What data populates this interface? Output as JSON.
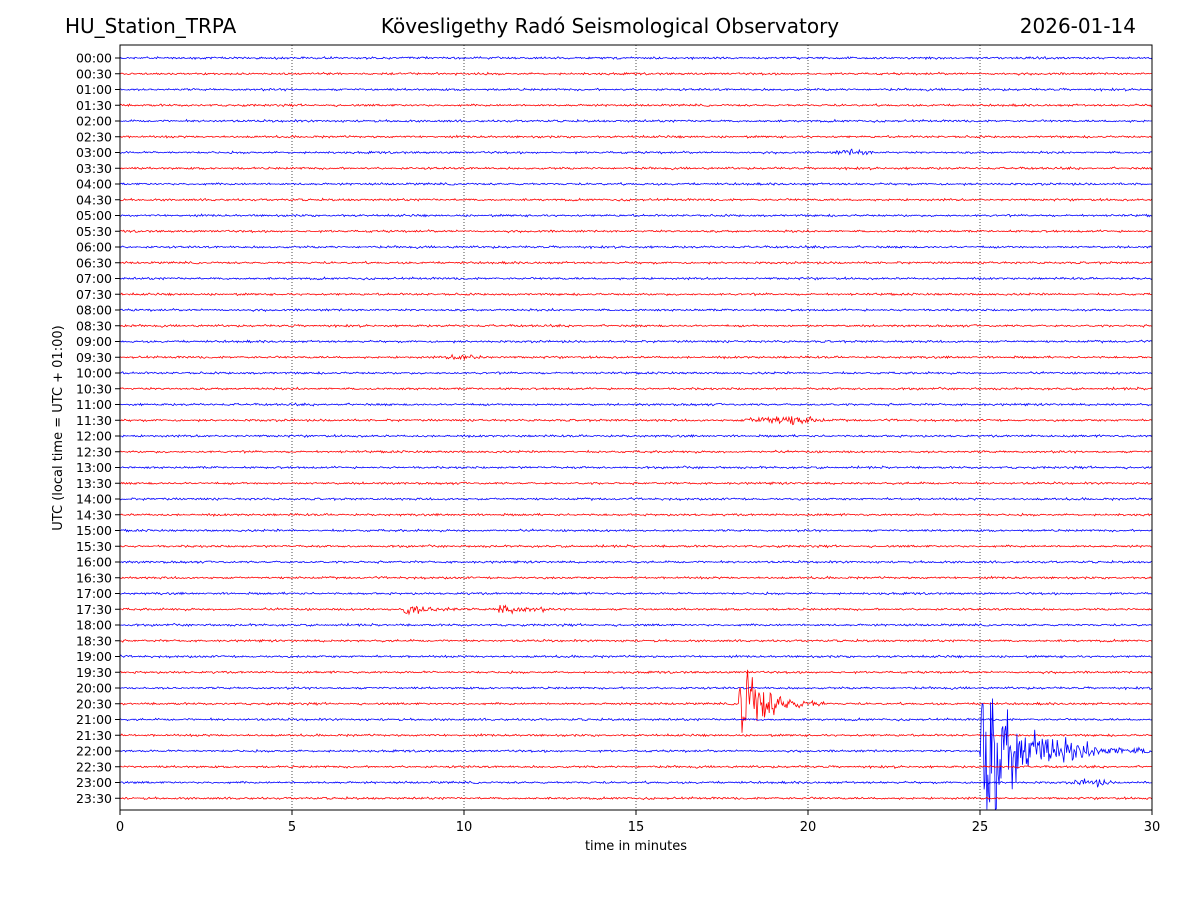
{
  "header": {
    "station": "HU_Station_TRPA",
    "observatory": "Kövesligethy Radó Seismological Observatory",
    "date": "2026-01-14"
  },
  "chart_data": {
    "type": "line",
    "title": "Kövesligethy Radó Seismological Observatory",
    "xlabel": "time in minutes",
    "ylabel": "UTC (local time = UTC + 01:00)",
    "xlim": [
      0,
      30
    ],
    "x_ticks": [
      "0",
      "5",
      "10",
      "15",
      "20",
      "25",
      "30"
    ],
    "x_gridlines_minutes": [
      5,
      10,
      15,
      20,
      25
    ],
    "grid": "vertical dotted",
    "row_labels": [
      "00:00",
      "00:30",
      "01:00",
      "01:30",
      "02:00",
      "02:30",
      "03:00",
      "03:30",
      "04:00",
      "04:30",
      "05:00",
      "05:30",
      "06:00",
      "06:30",
      "07:00",
      "07:30",
      "08:00",
      "08:30",
      "09:00",
      "09:30",
      "10:00",
      "10:30",
      "11:00",
      "11:30",
      "12:00",
      "12:30",
      "13:00",
      "13:30",
      "14:00",
      "14:30",
      "15:00",
      "15:30",
      "16:00",
      "16:30",
      "17:00",
      "17:30",
      "18:00",
      "18:30",
      "19:00",
      "19:30",
      "20:00",
      "20:30",
      "21:00",
      "21:30",
      "22:00",
      "22:30",
      "23:00",
      "23:30"
    ],
    "trace_colors": [
      "#0000ff",
      "#ff0000"
    ],
    "noise_amplitude": 1,
    "events": [
      {
        "row": "03:00",
        "start_min": 20.5,
        "duration_min": 1.7,
        "peak_amplitude": 3,
        "kind": "burst"
      },
      {
        "row": "09:30",
        "start_min": 9.2,
        "duration_min": 1.8,
        "peak_amplitude": 3,
        "kind": "burst"
      },
      {
        "row": "11:30",
        "start_min": 17.8,
        "duration_min": 3.0,
        "peak_amplitude": 5,
        "kind": "burst"
      },
      {
        "row": "17:30",
        "start_min": 8.2,
        "duration_min": 1.6,
        "peak_amplitude": 8,
        "kind": "quake"
      },
      {
        "row": "17:30",
        "start_min": 11.0,
        "duration_min": 1.4,
        "peak_amplitude": 8,
        "kind": "quake"
      },
      {
        "row": "20:30",
        "start_min": 18.0,
        "duration_min": 2.5,
        "peak_amplitude": 60,
        "kind": "quake"
      },
      {
        "row": "22:00",
        "start_min": 25.0,
        "duration_min": 5.0,
        "peak_amplitude": 85,
        "kind": "quake"
      },
      {
        "row": "23:00",
        "start_min": 27.5,
        "duration_min": 1.5,
        "peak_amplitude": 4,
        "kind": "burst"
      }
    ]
  }
}
